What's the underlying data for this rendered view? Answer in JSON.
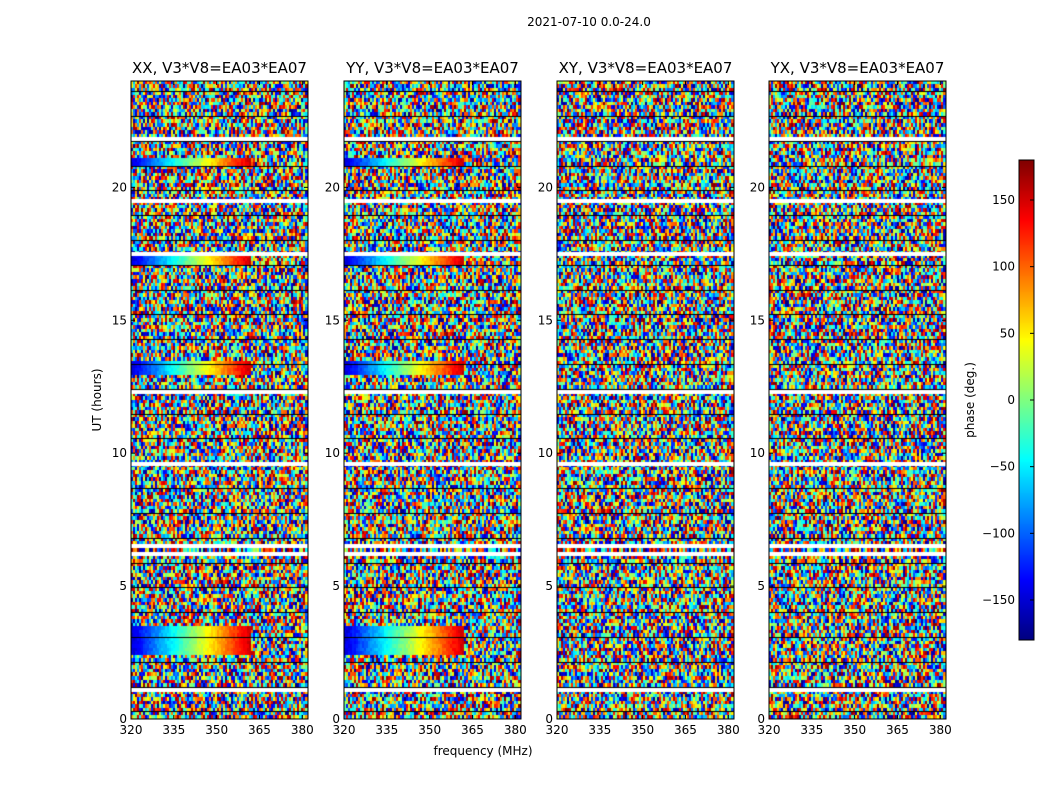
{
  "figure": {
    "suptitle": "2021-07-10 0.0-24.0",
    "xlabel": "frequency (MHz)",
    "ylabel": "UT (hours)",
    "colorbar_label": "phase (deg.)"
  },
  "chart_data": {
    "type": "heatmap",
    "panels": [
      {
        "title": "XX, V3*V8=EA03*EA07",
        "baseline": "V3*V8=EA03*EA07",
        "pol": "XX"
      },
      {
        "title": "YY, V3*V8=EA03*EA07",
        "baseline": "V3*V8=EA03*EA07",
        "pol": "YY"
      },
      {
        "title": "XY, V3*V8=EA03*EA07",
        "baseline": "V3*V8=EA03*EA07",
        "pol": "XY"
      },
      {
        "title": "YX, V3*V8=EA03*EA07",
        "baseline": "V3*V8=EA03*EA07",
        "pol": "YX"
      }
    ],
    "x": {
      "label": "frequency (MHz)",
      "range": [
        320,
        382
      ],
      "ticks": [
        320,
        335,
        350,
        365,
        380
      ],
      "tick_labels": [
        "320",
        "335",
        "350",
        "365",
        "380"
      ]
    },
    "y": {
      "label": "UT (hours)",
      "range": [
        0,
        24
      ],
      "ticks": [
        0,
        5,
        10,
        15,
        20
      ],
      "tick_labels": [
        "0",
        "5",
        "10",
        "15",
        "20"
      ]
    },
    "colorbar": {
      "label": "phase (deg.)",
      "range": [
        -180,
        180
      ],
      "ticks": [
        -150,
        -100,
        -50,
        0,
        50,
        100,
        150
      ],
      "tick_labels": [
        "−150",
        "−100",
        "−50",
        "0",
        "50",
        "100",
        "150"
      ],
      "colormap": "jet"
    },
    "flagged_ut_hours": [
      1.1,
      6.2,
      6.5,
      9.6,
      12.3,
      17.5,
      19.5,
      21.8
    ],
    "coherent_phase_bands": [
      {
        "ut_start": 2.4,
        "ut_end": 3.5,
        "freq_max": 362,
        "panels": [
          "XX",
          "YY"
        ]
      },
      {
        "ut_start": 13.0,
        "ut_end": 13.5,
        "freq_max": 362,
        "panels": [
          "XX",
          "YY"
        ]
      },
      {
        "ut_start": 17.1,
        "ut_end": 17.4,
        "freq_max": 362,
        "panels": [
          "XX",
          "YY"
        ]
      },
      {
        "ut_start": 20.8,
        "ut_end": 21.1,
        "freq_max": 362,
        "panels": [
          "XX",
          "YY"
        ]
      }
    ]
  }
}
